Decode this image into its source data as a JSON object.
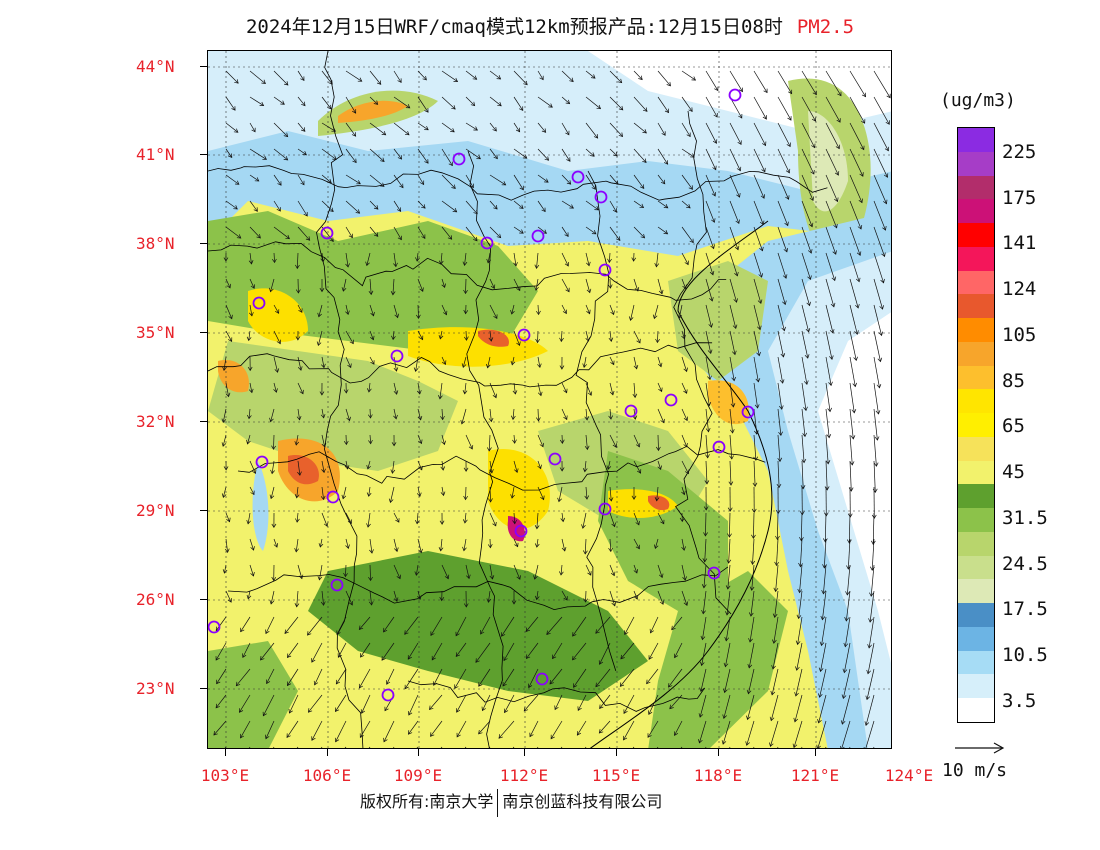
{
  "title": {
    "main": "2024年12月15日WRF/cmaq模式12km预报产品:12月15日08时",
    "pollutant": "PM2.5"
  },
  "map": {
    "lat_labels": [
      "44°N",
      "41°N",
      "38°N",
      "35°N",
      "32°N",
      "29°N",
      "26°N",
      "23°N"
    ],
    "lon_labels": [
      "103°E",
      "106°E",
      "109°E",
      "112°E",
      "115°E",
      "118°E",
      "121°E",
      "124°E"
    ],
    "background_colors": {
      "very_clean": "#ffffff",
      "clean_light": "#d6eefa",
      "clean_mid": "#a5d8f3",
      "blue": "#6cb8e3",
      "dark_blue": "#4595cb",
      "pale_green": "#dde9b6",
      "light_green": "#b8d56c",
      "green": "#8cc24a",
      "dark_green": "#5ea02e",
      "yellow_light": "#f3f372",
      "yellow": "#f0e34a",
      "gold": "#fde000",
      "orange_light": "#f7b232",
      "orange": "#f7931e",
      "red_orange": "#e8612c"
    },
    "station_marker_color": "#8b00ff",
    "boundary_color": "#000000",
    "arrow_color": "#111111"
  },
  "legend": {
    "unit": "(ug/m3)",
    "labels": [
      "225",
      "175",
      "141",
      "124",
      "105",
      "85",
      "65",
      "45",
      "31.5",
      "24.5",
      "17.5",
      "10.5",
      "3.5"
    ],
    "colors": [
      "#8b2be2",
      "#a63dc7",
      "#b22d6b",
      "#cc1177",
      "#ff0000",
      "#f4165a",
      "#ff6666",
      "#e8582d",
      "#ff8c00",
      "#f7a52b",
      "#fdbf2d",
      "#ffe500",
      "#ffef00",
      "#f6e25a",
      "#f2f26c",
      "#5ea02e",
      "#8cc24a",
      "#b8d56c",
      "#c9df8c",
      "#dde9b6",
      "#4a8fc6",
      "#6cb4e4",
      "#a6dcf5",
      "#d6effa",
      "#ffffff"
    ]
  },
  "wind": {
    "scale_label": "10 m/s"
  },
  "footer": {
    "left": "版权所有:南京大学",
    "right": "南京创蓝科技有限公司"
  }
}
